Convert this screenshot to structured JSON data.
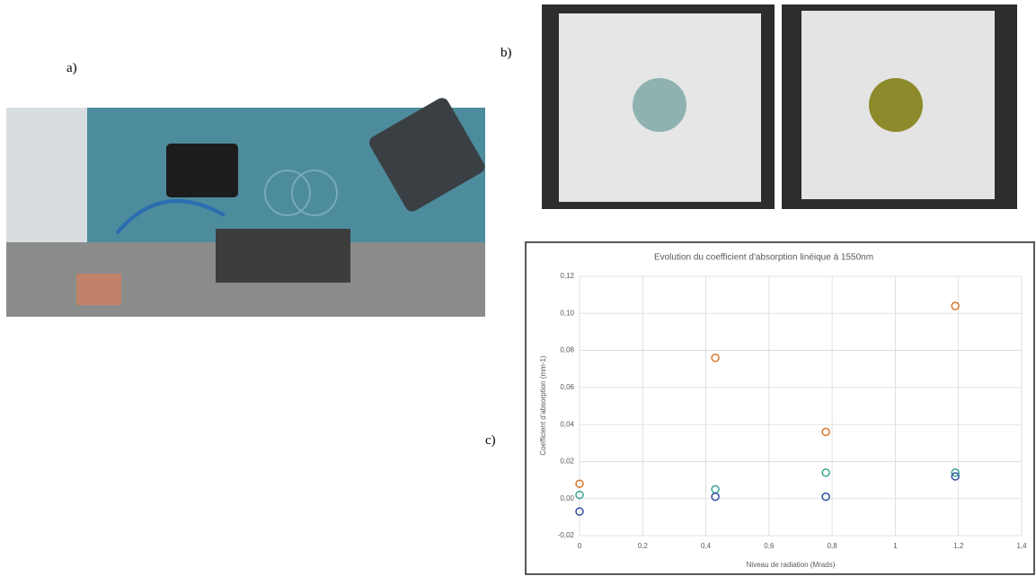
{
  "panel_labels": {
    "a": "a)",
    "b": "b)",
    "c": "c)"
  },
  "chart_data": {
    "type": "scatter",
    "title": "Evolution du coefficient d'absorption linéique à 1550nm",
    "x_label": "Niveau de radiation (Mrads)",
    "y_label": "Coefficient d'absorption (mm-1)",
    "x": [
      0,
      0.43,
      0.78,
      1.19
    ],
    "series": [
      {
        "color": "#d9742b",
        "values": [
          0.008,
          0.076,
          0.036,
          0.104
        ]
      },
      {
        "color": "#3aa38f",
        "values": [
          0.002,
          0.005,
          0.014,
          0.014
        ]
      },
      {
        "color": "#2f4f9e",
        "values": [
          -0.007,
          0.001,
          0.001,
          0.012
        ]
      }
    ],
    "xlim": [
      0,
      1.4
    ],
    "xticks": [
      0,
      {
        "value": 0.2,
        "label": "0,2"
      },
      {
        "value": 0.4,
        "label": "0,4"
      },
      {
        "value": 0.6,
        "label": "0,6"
      },
      {
        "value": 0.8,
        "label": "0,8"
      },
      1,
      {
        "value": 1.2,
        "label": "1,2"
      },
      {
        "value": 1.4,
        "label": "1,4"
      }
    ],
    "ylim": [
      -0.02,
      0.12
    ],
    "yticks": [
      {
        "value": -0.02,
        "label": "-0,02"
      },
      {
        "value": 0,
        "label": "0,00"
      },
      {
        "value": 0.02,
        "label": "0,02"
      },
      {
        "value": 0.04,
        "label": "0,04"
      },
      {
        "value": 0.06,
        "label": "0,06"
      },
      {
        "value": 0.08,
        "label": "0,08"
      },
      {
        "value": 0.1,
        "label": "0,10"
      },
      {
        "value": 0.12,
        "label": "0,12"
      }
    ],
    "grid": true
  }
}
